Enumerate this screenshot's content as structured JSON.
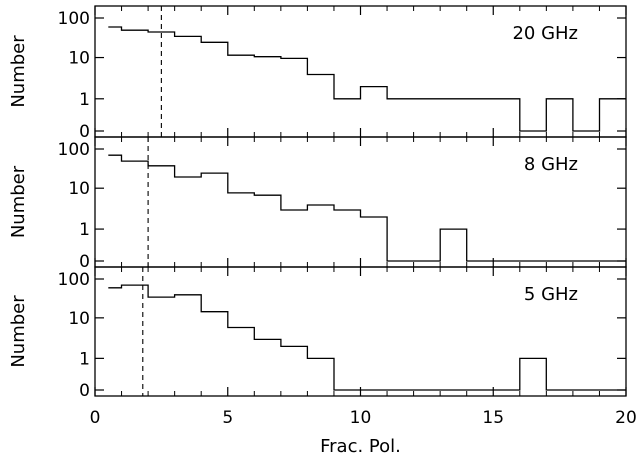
{
  "chart_data": [
    {
      "type": "histogram",
      "label": "20 GHz",
      "ylabel": "Number",
      "xlim": [
        0,
        20
      ],
      "y_ticks": [
        "100",
        "10",
        "1",
        "0"
      ],
      "dashed_line_x": 2.5,
      "bin_edges": [
        0.5,
        1,
        2,
        3,
        4,
        5,
        6,
        7,
        8,
        9,
        10,
        11,
        12,
        13,
        14,
        15,
        16,
        17,
        18,
        19,
        20
      ],
      "values": [
        60,
        50,
        45,
        35,
        25,
        12,
        11,
        10,
        4,
        1,
        2,
        1,
        1,
        1,
        1,
        1,
        0,
        1,
        0,
        1
      ]
    },
    {
      "type": "histogram",
      "label": "8 GHz",
      "ylabel": "Number",
      "xlim": [
        0,
        20
      ],
      "y_ticks": [
        "100",
        "10",
        "1",
        "0"
      ],
      "dashed_line_x": 2.0,
      "bin_edges": [
        0.5,
        1,
        2,
        3,
        4,
        5,
        6,
        7,
        8,
        9,
        10,
        11,
        12,
        13,
        14,
        15,
        16,
        17,
        18,
        19,
        20
      ],
      "values": [
        70,
        50,
        38,
        20,
        25,
        8,
        7,
        3,
        4,
        3,
        2,
        0,
        0,
        1,
        0,
        0,
        0,
        0,
        0,
        0
      ]
    },
    {
      "type": "histogram",
      "label": "5 GHz",
      "ylabel": "Number",
      "xlabel": "Frac. Pol.",
      "xlim": [
        0,
        20
      ],
      "x_ticks": [
        "0",
        "5",
        "10",
        "15",
        "20"
      ],
      "y_ticks": [
        "100",
        "10",
        "1",
        "0"
      ],
      "dashed_line_x": 1.8,
      "bin_edges": [
        0.5,
        1,
        2,
        3,
        4,
        5,
        6,
        7,
        8,
        9,
        10,
        11,
        12,
        13,
        14,
        15,
        16,
        17,
        18,
        19,
        20
      ],
      "values": [
        60,
        70,
        35,
        40,
        15,
        6,
        3,
        2,
        1,
        0,
        0,
        0,
        0,
        0,
        0,
        0,
        1,
        0,
        0,
        0
      ]
    }
  ]
}
